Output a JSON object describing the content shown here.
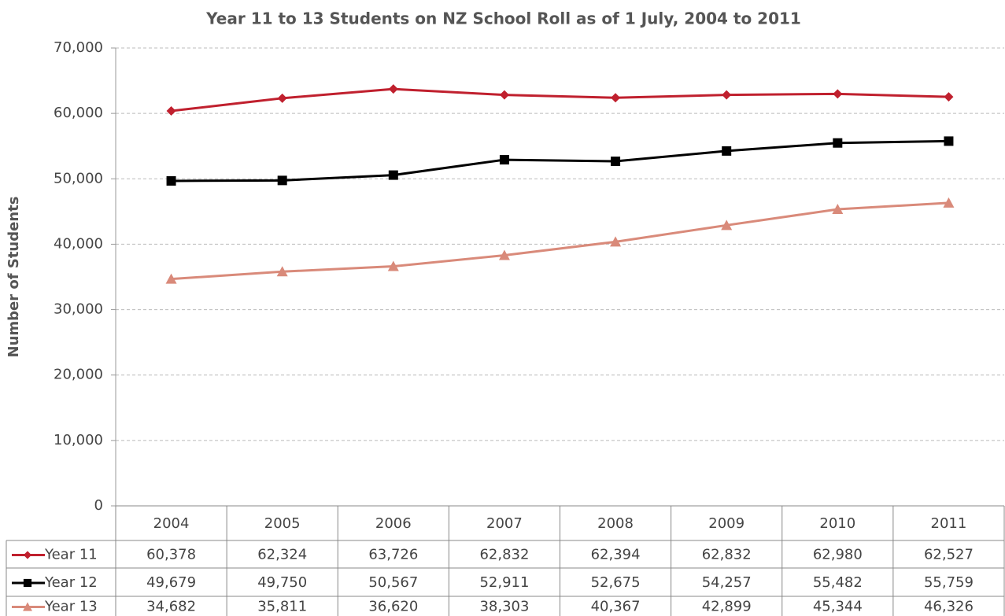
{
  "chart_data": {
    "type": "line",
    "title": "Year 11 to 13 Students on NZ School Roll as of 1 July, 2004 to 2011",
    "y_label": "Number of Students",
    "categories": [
      "2004",
      "2005",
      "2006",
      "2007",
      "2008",
      "2009",
      "2010",
      "2011"
    ],
    "series": [
      {
        "name": "Year 11",
        "color": "#c0202e",
        "marker": "diamond",
        "values": [
          60378,
          62324,
          63726,
          62832,
          62394,
          62832,
          62980,
          62527
        ],
        "value_labels": [
          "60,378",
          "62,324",
          "63,726",
          "62,832",
          "62,394",
          "62,832",
          "62,980",
          "62,527"
        ]
      },
      {
        "name": "Year 12",
        "color": "#000000",
        "marker": "square",
        "values": [
          49679,
          49750,
          50567,
          52911,
          52675,
          54257,
          55482,
          55759
        ],
        "value_labels": [
          "49,679",
          "49,750",
          "50,567",
          "52,911",
          "52,675",
          "54,257",
          "55,482",
          "55,759"
        ]
      },
      {
        "name": "Year 13",
        "color": "#d98a7a",
        "marker": "triangle",
        "values": [
          34682,
          35811,
          36620,
          38303,
          40367,
          42899,
          45344,
          46326
        ],
        "value_labels": [
          "34,682",
          "35,811",
          "36,620",
          "38,303",
          "40,367",
          "42,899",
          "45,344",
          "46,326"
        ]
      }
    ],
    "ylim": [
      0,
      70000
    ],
    "yticks": [
      0,
      {
        "value": 10000,
        "label": "10,000"
      },
      {
        "value": 20000,
        "label": "20,000"
      },
      {
        "value": 30000,
        "label": "30,000"
      },
      {
        "value": 40000,
        "label": "40,000"
      },
      {
        "value": 50000,
        "label": "50,000"
      },
      {
        "value": 60000,
        "label": "60,000"
      },
      {
        "value": 70000,
        "label": "70,000"
      }
    ],
    "grid": true,
    "data_table": true
  }
}
